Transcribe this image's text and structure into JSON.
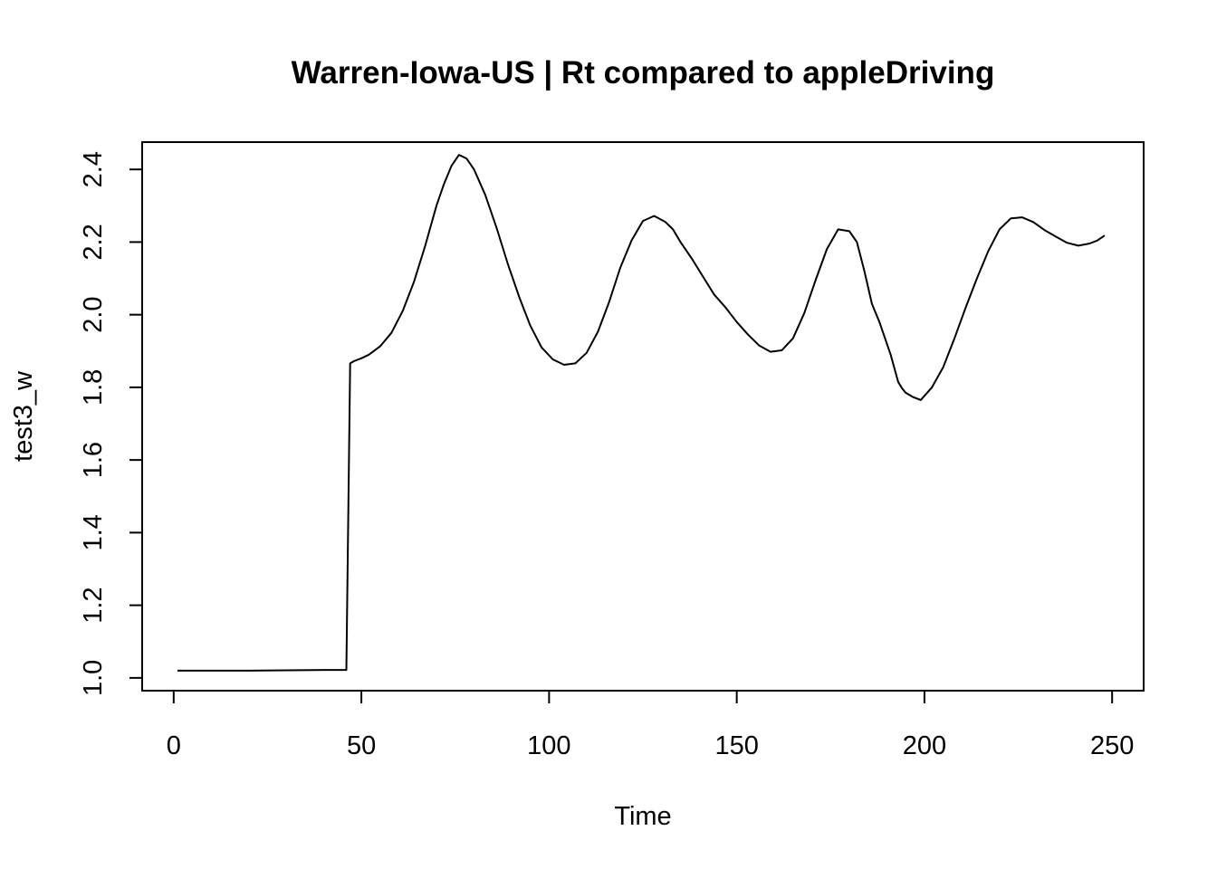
{
  "chart_data": {
    "type": "line",
    "title": "Warren-Iowa-US | Rt compared to appleDriving",
    "xlabel": "Time",
    "ylabel": "test3_w",
    "xlim": [
      -8.4,
      258.4
    ],
    "ylim": [
      0.9648,
      2.4752
    ],
    "x_ticks": [
      0,
      50,
      100,
      150,
      200,
      250
    ],
    "y_ticks": [
      1.0,
      1.2,
      1.4,
      1.6,
      1.8,
      2.0,
      2.2,
      2.4
    ],
    "x_tick_labels": [
      "0",
      "50",
      "100",
      "150",
      "200",
      "250"
    ],
    "y_tick_labels": [
      "1.0",
      "1.2",
      "1.4",
      "1.6",
      "1.8",
      "2.0",
      "2.2",
      "2.4"
    ],
    "grid": false,
    "series": [
      {
        "color": "#000000",
        "x": [
          1,
          10,
          20,
          30,
          40,
          46,
          47,
          48,
          50,
          52,
          55,
          58,
          61,
          64,
          67,
          70,
          72,
          74,
          76,
          78,
          80,
          83,
          86,
          89,
          92,
          95,
          98,
          101,
          104,
          107,
          110,
          113,
          116,
          119,
          122,
          125,
          128,
          131,
          133,
          135,
          138,
          141,
          144,
          147,
          150,
          153,
          156,
          159,
          162,
          165,
          168,
          171,
          174,
          177,
          180,
          182,
          184,
          186,
          188,
          189,
          191,
          193,
          194,
          195,
          197,
          199,
          202,
          205,
          208,
          211,
          214,
          217,
          220,
          223,
          226,
          229,
          232,
          235,
          238,
          241,
          244,
          246,
          248
        ],
        "y": [
          1.02,
          1.02,
          1.02,
          1.021,
          1.022,
          1.022,
          1.866,
          1.872,
          1.88,
          1.89,
          1.913,
          1.95,
          2.01,
          2.09,
          2.19,
          2.3,
          2.36,
          2.41,
          2.44,
          2.43,
          2.4,
          2.33,
          2.24,
          2.14,
          2.05,
          1.97,
          1.91,
          1.877,
          1.862,
          1.866,
          1.895,
          1.953,
          2.035,
          2.13,
          2.205,
          2.258,
          2.272,
          2.255,
          2.235,
          2.2,
          2.155,
          2.105,
          2.055,
          2.02,
          1.98,
          1.945,
          1.915,
          1.898,
          1.902,
          1.935,
          2.005,
          2.095,
          2.18,
          2.235,
          2.23,
          2.2,
          2.12,
          2.03,
          1.98,
          1.95,
          1.89,
          1.815,
          1.798,
          1.785,
          1.773,
          1.765,
          1.8,
          1.855,
          1.935,
          2.02,
          2.1,
          2.175,
          2.235,
          2.265,
          2.268,
          2.255,
          2.233,
          2.215,
          2.198,
          2.19,
          2.196,
          2.204,
          2.218
        ]
      }
    ]
  }
}
